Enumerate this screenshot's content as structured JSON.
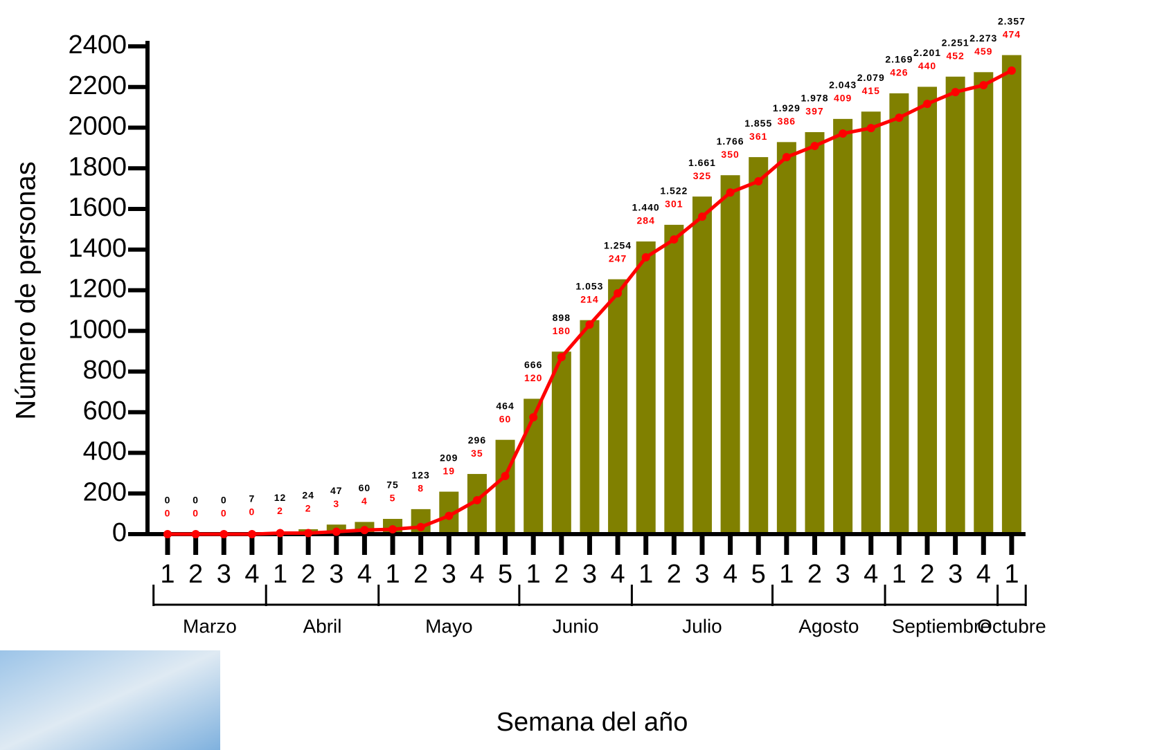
{
  "chart_data": {
    "type": "bar_line",
    "ylabel": "Número de personas",
    "xlabel": "Semana del año",
    "ylim": [
      0,
      2400
    ],
    "yticks": [
      0,
      200,
      400,
      600,
      800,
      1000,
      1200,
      1400,
      1600,
      1800,
      2000,
      2200,
      2400
    ],
    "months": [
      {
        "name": "Marzo",
        "weeks": [
          "1",
          "2",
          "3",
          "4"
        ]
      },
      {
        "name": "Abril",
        "weeks": [
          "1",
          "2",
          "3",
          "4"
        ]
      },
      {
        "name": "Mayo",
        "weeks": [
          "1",
          "2",
          "3",
          "4",
          "5"
        ]
      },
      {
        "name": "Junio",
        "weeks": [
          "1",
          "2",
          "3",
          "4"
        ]
      },
      {
        "name": "Julio",
        "weeks": [
          "1",
          "2",
          "3",
          "4",
          "5"
        ]
      },
      {
        "name": "Agosto",
        "weeks": [
          "1",
          "2",
          "3",
          "4"
        ]
      },
      {
        "name": "Septiembre",
        "weeks": [
          "1",
          "2",
          "3",
          "4"
        ]
      },
      {
        "name": "Octubre",
        "weeks": [
          "1"
        ]
      }
    ],
    "bars": {
      "color": "#808000",
      "values": [
        0,
        0,
        0,
        7,
        12,
        24,
        47,
        60,
        75,
        123,
        209,
        296,
        464,
        666,
        898,
        1053,
        1254,
        1440,
        1522,
        1661,
        1766,
        1855,
        1929,
        1978,
        2043,
        2079,
        2169,
        2201,
        2251,
        2273,
        2357
      ],
      "value_labels": [
        "0",
        "0",
        "0",
        "7",
        "12",
        "24",
        "47",
        "60",
        "75",
        "123",
        "209",
        "296",
        "464",
        "666",
        "898",
        "1.053",
        "1.254",
        "1.440",
        "1.522",
        "1.661",
        "1.766",
        "1.855",
        "1.929",
        "1.978",
        "2.043",
        "2.079",
        "2.169",
        "2.201",
        "2.251",
        "2.273",
        "2.357"
      ]
    },
    "line": {
      "color": "#ff0000",
      "values": [
        0,
        0,
        0,
        0,
        5,
        5,
        12,
        20,
        24,
        35,
        90,
        167,
        286,
        575,
        871,
        1031,
        1185,
        1362,
        1450,
        1562,
        1681,
        1736,
        1855,
        1910,
        1971,
        1998,
        2049,
        2117,
        2175,
        2209,
        2281
      ],
      "labels": [
        0,
        0,
        0,
        0,
        2,
        2,
        3,
        4,
        5,
        8,
        19,
        35,
        60,
        120,
        180,
        214,
        247,
        284,
        301,
        325,
        350,
        361,
        386,
        397,
        409,
        415,
        426,
        440,
        452,
        459,
        474
      ]
    }
  }
}
